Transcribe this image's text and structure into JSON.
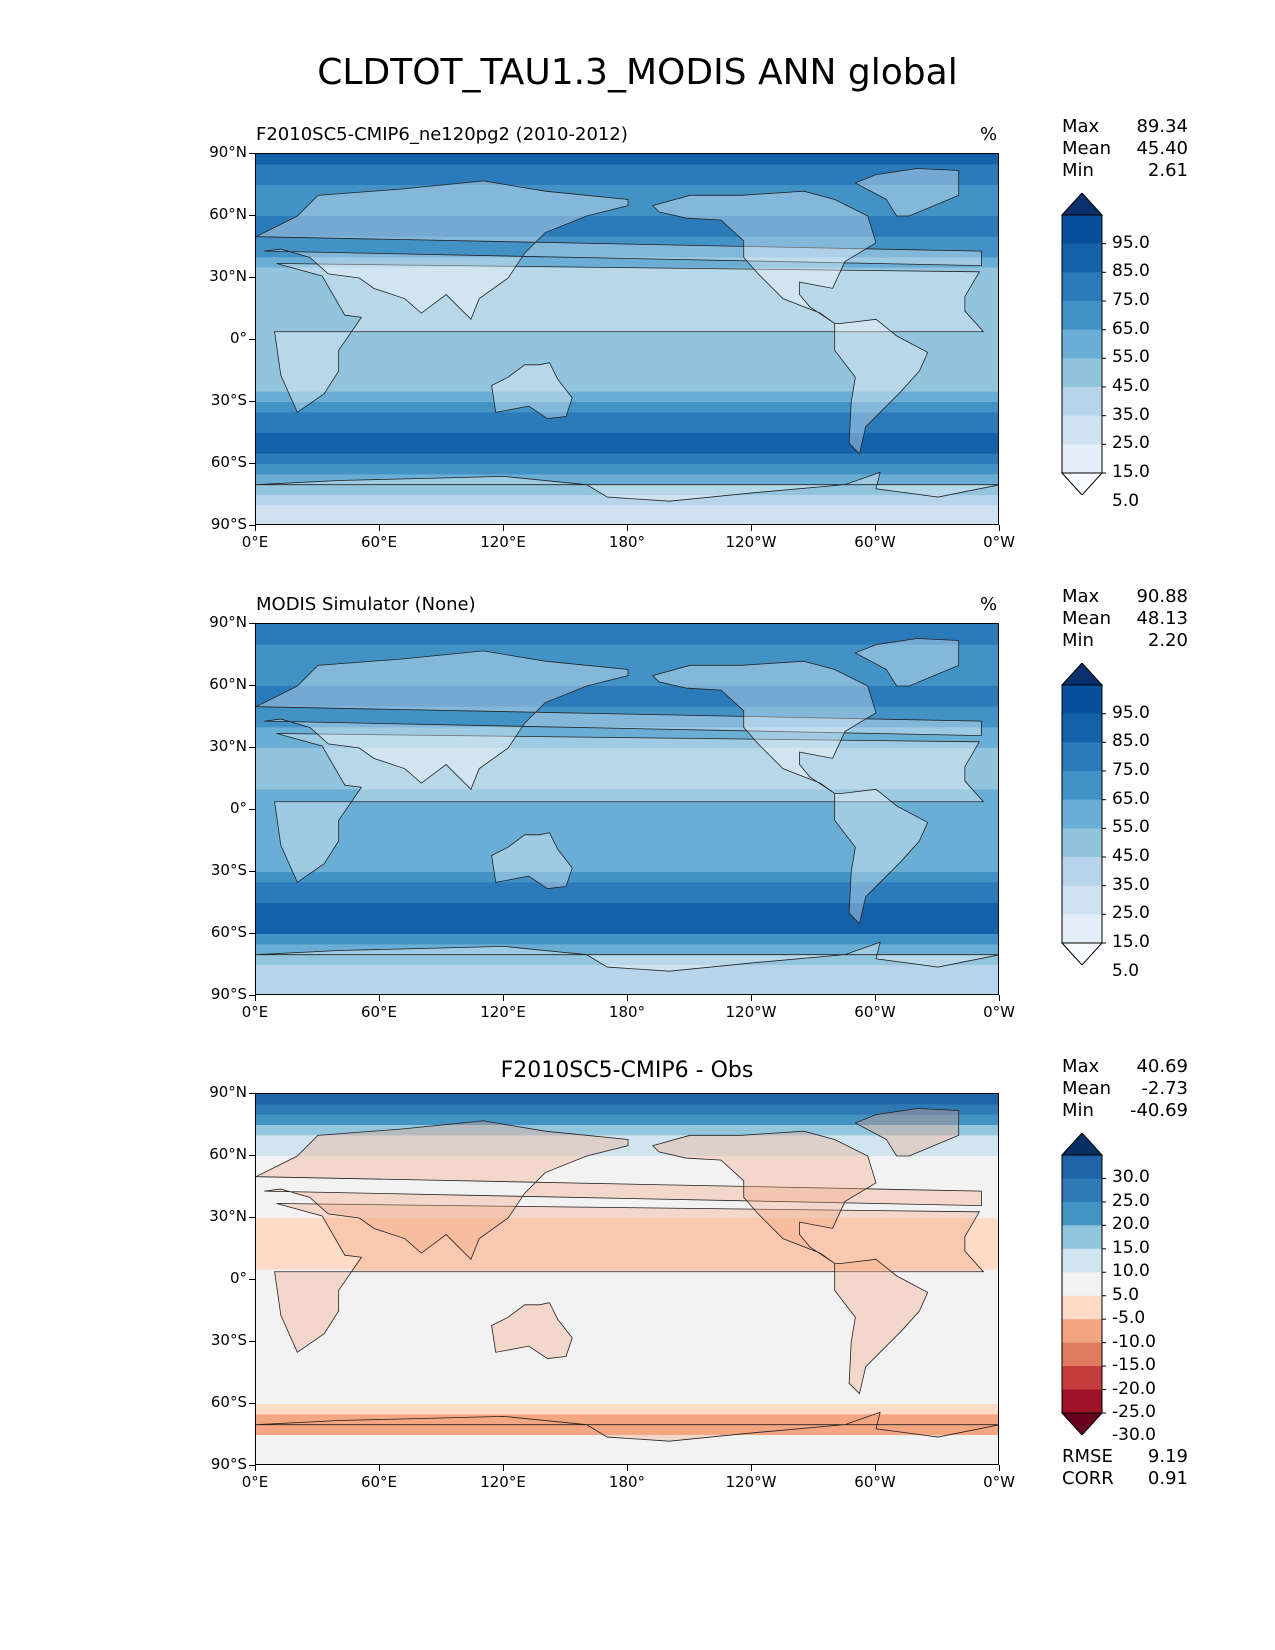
{
  "title": "CLDTOT_TAU1.3_MODIS ANN global",
  "lat_ticks": [
    "90°N",
    "60°N",
    "30°N",
    "0°",
    "30°S",
    "60°S",
    "90°S"
  ],
  "lon_ticks": [
    "0°E",
    "60°E",
    "120°E",
    "180°",
    "120°W",
    "60°W",
    "0°W"
  ],
  "panels": [
    {
      "title": "F2010SC5-CMIP6_ne120pg2 (2010-2012)",
      "units": "%",
      "stats": {
        "max_label": "Max",
        "max": "89.34",
        "mean_label": "Mean",
        "mean": "45.40",
        "min_label": "Min",
        "min": "2.61"
      },
      "colorbar": {
        "labels": [
          "95.0",
          "85.0",
          "75.0",
          "65.0",
          "55.0",
          "45.0",
          "35.0",
          "25.0",
          "15.0",
          "5.0"
        ],
        "colors": [
          "#08306b",
          "#08509b",
          "#1561a9",
          "#2b7bba",
          "#4292c6",
          "#6aaed6",
          "#92c4de",
          "#b7d4ea",
          "#d0e1f2",
          "#e3eef9",
          "#f7fbff"
        ]
      }
    },
    {
      "title": "MODIS Simulator (None)",
      "units": "%",
      "stats": {
        "max_label": "Max",
        "max": "90.88",
        "mean_label": "Mean",
        "mean": "48.13",
        "min_label": "Min",
        "min": "2.20"
      },
      "colorbar": {
        "labels": [
          "95.0",
          "85.0",
          "75.0",
          "65.0",
          "55.0",
          "45.0",
          "35.0",
          "25.0",
          "15.0",
          "5.0"
        ],
        "colors": [
          "#08306b",
          "#08509b",
          "#1561a9",
          "#2b7bba",
          "#4292c6",
          "#6aaed6",
          "#92c4de",
          "#b7d4ea",
          "#d0e1f2",
          "#e3eef9",
          "#f7fbff"
        ]
      }
    },
    {
      "title": "F2010SC5-CMIP6 - Obs",
      "stats": {
        "max_label": "Max",
        "max": "40.69",
        "mean_label": "Mean",
        "mean": "-2.73",
        "min_label": "Min",
        "min": "-40.69"
      },
      "colorbar": {
        "labels": [
          "30.0",
          "25.0",
          "20.0",
          "15.0",
          "10.0",
          "5.0",
          "-5.0",
          "-10.0",
          "-15.0",
          "-20.0",
          "-25.0",
          "-30.0"
        ],
        "colors": [
          "#053061",
          "#1f63a8",
          "#2f79b5",
          "#4393c3",
          "#92c5de",
          "#d1e5f0",
          "#f2f2f2",
          "#fddbc7",
          "#f4a582",
          "#e07b62",
          "#c43c3c",
          "#a01228",
          "#67001f"
        ]
      },
      "metrics": {
        "rmse_label": "RMSE",
        "rmse": "9.19",
        "corr_label": "CORR",
        "corr": "0.91"
      }
    }
  ],
  "chart_data": [
    {
      "type": "heatmap",
      "title": "F2010SC5-CMIP6_ne120pg2 (2010-2012)",
      "variable": "CLDTOT_TAU1.3_MODIS",
      "units": "%",
      "x": [
        0,
        60,
        120,
        180,
        240,
        300,
        360
      ],
      "y": [
        90,
        60,
        30,
        0,
        -30,
        -60,
        -90
      ],
      "xlim": [
        0,
        360
      ],
      "ylim": [
        -90,
        90
      ],
      "levels": [
        5,
        15,
        25,
        35,
        45,
        55,
        65,
        75,
        85,
        95
      ],
      "max": 89.34,
      "mean": 45.4,
      "min": 2.61,
      "zonal_profile": {
        "lat": [
          85,
          70,
          55,
          45,
          30,
          15,
          5,
          -10,
          -25,
          -40,
          -55,
          -65,
          -80
        ],
        "value": [
          75,
          55,
          70,
          60,
          40,
          35,
          45,
          40,
          40,
          70,
          80,
          55,
          20
        ]
      }
    },
    {
      "type": "heatmap",
      "title": "MODIS Simulator (None)",
      "units": "%",
      "x": [
        0,
        60,
        120,
        180,
        240,
        300,
        360
      ],
      "y": [
        90,
        60,
        30,
        0,
        -30,
        -60,
        -90
      ],
      "xlim": [
        0,
        360
      ],
      "ylim": [
        -90,
        90
      ],
      "levels": [
        5,
        15,
        25,
        35,
        45,
        55,
        65,
        75,
        85,
        95
      ],
      "max": 90.88,
      "mean": 48.13,
      "min": 2.2,
      "zonal_profile": {
        "lat": [
          85,
          70,
          55,
          45,
          30,
          15,
          5,
          -10,
          -25,
          -40,
          -55,
          -65,
          -80
        ],
        "value": [
          70,
          55,
          72,
          62,
          45,
          40,
          50,
          45,
          45,
          72,
          85,
          58,
          25
        ]
      }
    },
    {
      "type": "heatmap",
      "title": "F2010SC5-CMIP6 - Obs",
      "x": [
        0,
        60,
        120,
        180,
        240,
        300,
        360
      ],
      "y": [
        90,
        60,
        30,
        0,
        -30,
        -60,
        -90
      ],
      "xlim": [
        0,
        360
      ],
      "ylim": [
        -90,
        90
      ],
      "levels": [
        -30,
        -25,
        -20,
        -15,
        -10,
        -5,
        5,
        10,
        15,
        20,
        25,
        30
      ],
      "max": 40.69,
      "mean": -2.73,
      "min": -40.69,
      "rmse": 9.19,
      "corr": 0.91,
      "zonal_profile": {
        "lat": [
          85,
          70,
          55,
          30,
          10,
          0,
          -20,
          -40,
          -60,
          -68,
          -80
        ],
        "value": [
          25,
          10,
          0,
          -5,
          -8,
          -3,
          -2,
          -1,
          -3,
          -15,
          -2
        ]
      }
    }
  ]
}
